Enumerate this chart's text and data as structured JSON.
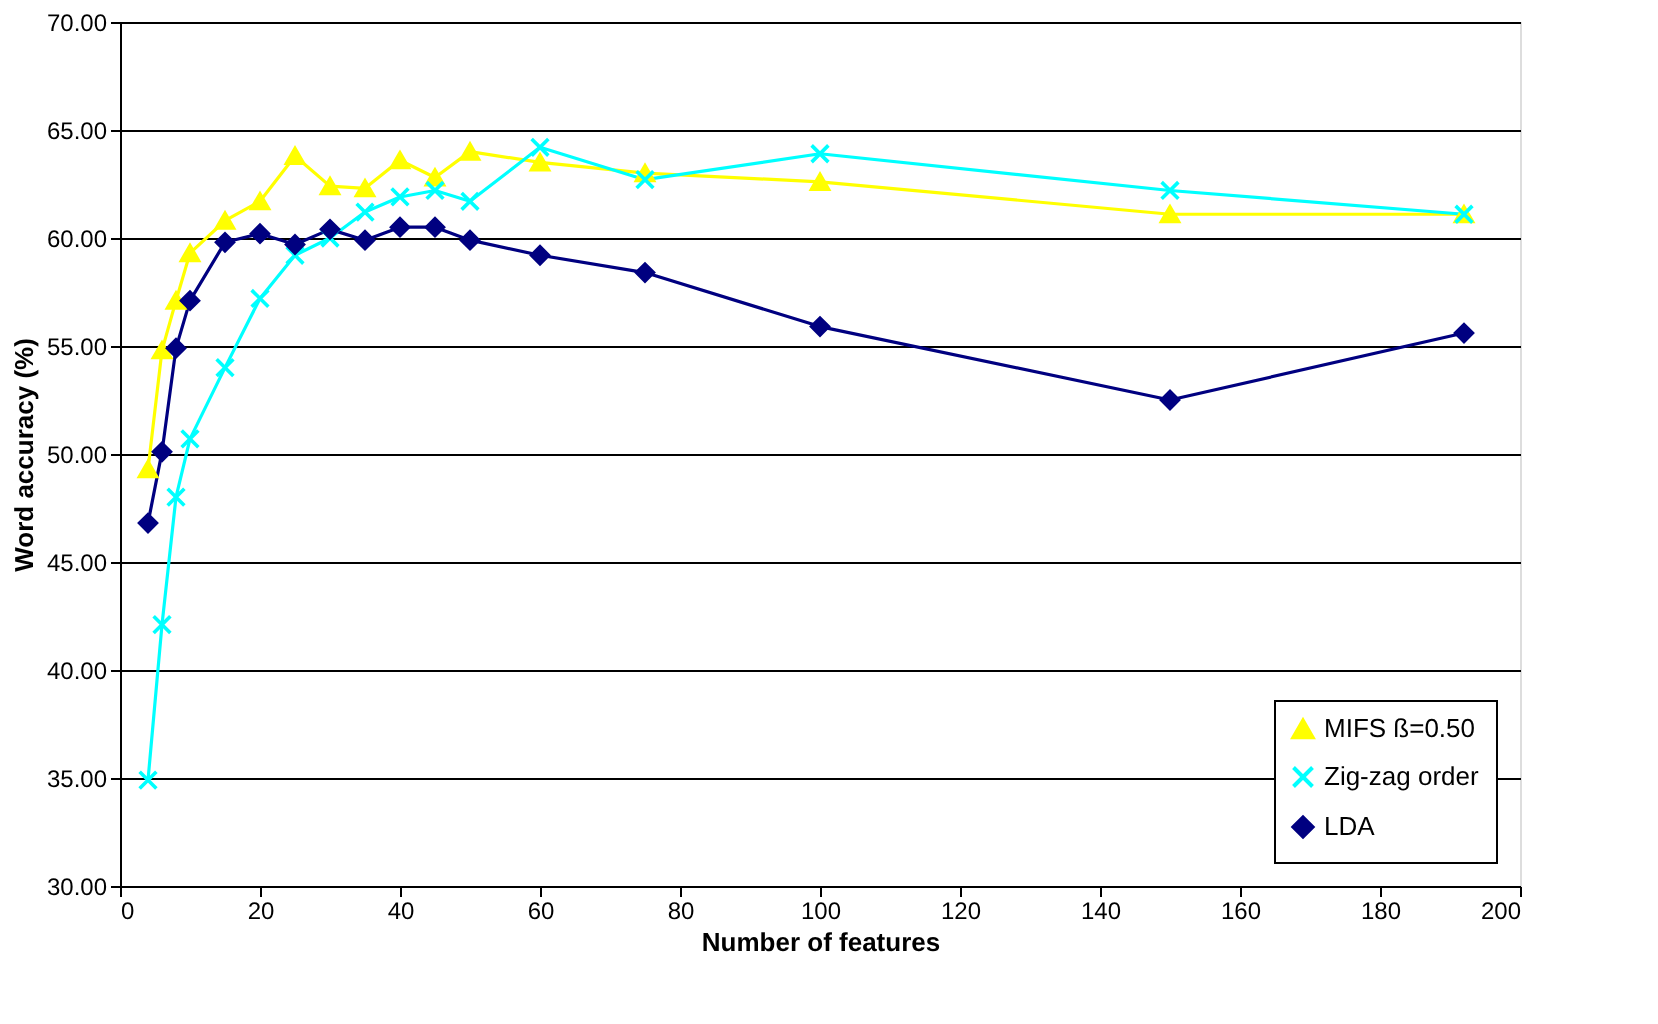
{
  "chart_data": {
    "type": "line",
    "xlabel": "Number of features",
    "ylabel": "Word accuracy (%)",
    "x": [
      4,
      6,
      8,
      10,
      15,
      20,
      25,
      30,
      35,
      40,
      45,
      50,
      60,
      75,
      100,
      150,
      192
    ],
    "xlim": [
      0,
      200
    ],
    "xticks": [
      0,
      20,
      40,
      60,
      80,
      100,
      120,
      140,
      160,
      180,
      200
    ],
    "ylim": [
      30,
      70
    ],
    "yticks": [
      {
        "value": 30,
        "label": "30.00"
      },
      {
        "value": 35,
        "label": "35.00"
      },
      {
        "value": 40,
        "label": "40.00"
      },
      {
        "value": 45,
        "label": "45.00"
      },
      {
        "value": 50,
        "label": "50.00"
      },
      {
        "value": 55,
        "label": "55.00"
      },
      {
        "value": 60,
        "label": "60.00"
      },
      {
        "value": 65,
        "label": "65.00"
      },
      {
        "value": 70,
        "label": "70.00"
      }
    ],
    "grid": "y",
    "legend": "bottom right",
    "line_style": "solid",
    "series": [
      {
        "name": "MIFS ß=0.50",
        "color": "#ffff00",
        "marker": "triangle",
        "values": [
          49.3,
          54.8,
          57.1,
          59.3,
          60.8,
          61.7,
          63.8,
          62.4,
          62.3,
          63.6,
          62.8,
          64.0,
          63.5,
          63.0,
          62.6,
          61.1,
          61.1
        ]
      },
      {
        "name": "Zig-zag order",
        "color": "#00ffff",
        "marker": "cross",
        "values": [
          34.9,
          42.1,
          48.0,
          50.7,
          54.0,
          57.2,
          59.2,
          60.0,
          61.2,
          61.9,
          62.2,
          61.7,
          64.2,
          62.7,
          63.9,
          62.2,
          61.1
        ]
      },
      {
        "name": "LDA",
        "color": "#000080",
        "marker": "diamond",
        "values": [
          46.8,
          50.1,
          54.9,
          57.1,
          59.8,
          60.2,
          59.7,
          60.4,
          59.9,
          60.5,
          60.5,
          59.9,
          59.2,
          58.4,
          55.9,
          52.5,
          55.6
        ]
      }
    ]
  }
}
